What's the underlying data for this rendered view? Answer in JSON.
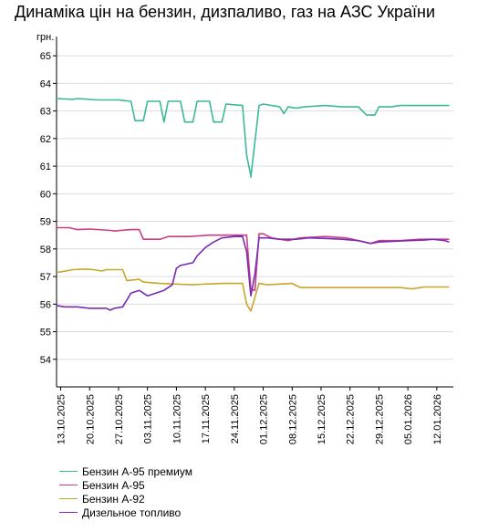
{
  "title": "Динаміка цін на бензин, дизпаливо, газ на АЗС України",
  "chart_data": {
    "type": "line",
    "title": "Динаміка цін на бензин, дизпаливо, газ на АЗС України",
    "ylabel": "грн.",
    "xlabel": "",
    "ylim": [
      53,
      65.5
    ],
    "yticks": [
      54,
      55,
      56,
      57,
      58,
      59,
      60,
      61,
      62,
      63,
      64,
      65
    ],
    "xlim": [
      "2025-10-12",
      "2026-01-16"
    ],
    "xticks": [
      "13.10.2025",
      "20.10.2025",
      "27.10.2025",
      "03.11.2025",
      "10.11.2025",
      "17.11.2025",
      "24.11.2025",
      "01.12.2025",
      "08.12.2025",
      "15.12.2025",
      "22.12.2025",
      "29.12.2025",
      "05.01.2026",
      "12.01.2026"
    ],
    "grid": "horizontal",
    "legend_position": "bottom-left",
    "series": [
      {
        "name": "Бензин А-95 премиум",
        "color": "#3bb89a",
        "points": [
          [
            "2025-10-12",
            63.45
          ],
          [
            "2025-10-16",
            63.42
          ],
          [
            "2025-10-17",
            63.45
          ],
          [
            "2025-10-19",
            63.43
          ],
          [
            "2025-10-22",
            63.4
          ],
          [
            "2025-10-27",
            63.4
          ],
          [
            "2025-10-28",
            63.38
          ],
          [
            "2025-10-30",
            63.35
          ],
          [
            "2025-10-31",
            62.65
          ],
          [
            "2025-11-02",
            62.65
          ],
          [
            "2025-11-03",
            63.35
          ],
          [
            "2025-11-06",
            63.35
          ],
          [
            "2025-11-07",
            62.6
          ],
          [
            "2025-11-08",
            63.35
          ],
          [
            "2025-11-11",
            63.35
          ],
          [
            "2025-11-12",
            62.6
          ],
          [
            "2025-11-14",
            62.6
          ],
          [
            "2025-11-15",
            63.35
          ],
          [
            "2025-11-18",
            63.35
          ],
          [
            "2025-11-19",
            62.6
          ],
          [
            "2025-11-21",
            62.6
          ],
          [
            "2025-11-22",
            63.25
          ],
          [
            "2025-11-26",
            63.2
          ],
          [
            "2025-11-27",
            61.4
          ],
          [
            "2025-11-28",
            60.65
          ],
          [
            "2025-11-28",
            60.6
          ],
          [
            "2025-11-30",
            63.2
          ],
          [
            "2025-12-01",
            63.25
          ],
          [
            "2025-12-05",
            63.15
          ],
          [
            "2025-12-06",
            62.9
          ],
          [
            "2025-12-07",
            63.15
          ],
          [
            "2025-12-09",
            63.1
          ],
          [
            "2025-12-11",
            63.15
          ],
          [
            "2025-12-16",
            63.2
          ],
          [
            "2025-12-20",
            63.15
          ],
          [
            "2025-12-24",
            63.15
          ],
          [
            "2025-12-26",
            62.85
          ],
          [
            "2025-12-28",
            62.85
          ],
          [
            "2025-12-29",
            63.15
          ],
          [
            "2026-01-01",
            63.15
          ],
          [
            "2026-01-03",
            63.2
          ],
          [
            "2026-01-07",
            63.2
          ],
          [
            "2026-01-15",
            63.2
          ]
        ]
      },
      {
        "name": "Бензин А-95",
        "color": "#cc3d86",
        "points": [
          [
            "2025-10-12",
            58.77
          ],
          [
            "2025-10-15",
            58.77
          ],
          [
            "2025-10-17",
            58.7
          ],
          [
            "2025-10-20",
            58.72
          ],
          [
            "2025-10-25",
            58.67
          ],
          [
            "2025-10-26",
            58.65
          ],
          [
            "2025-10-30",
            58.7
          ],
          [
            "2025-11-01",
            58.7
          ],
          [
            "2025-11-02",
            58.35
          ],
          [
            "2025-11-06",
            58.35
          ],
          [
            "2025-11-08",
            58.45
          ],
          [
            "2025-11-13",
            58.45
          ],
          [
            "2025-11-18",
            58.5
          ],
          [
            "2025-11-27",
            58.5
          ],
          [
            "2025-11-28",
            56.55
          ],
          [
            "2025-11-29",
            56.5
          ],
          [
            "2025-11-30",
            58.55
          ],
          [
            "2025-12-01",
            58.55
          ],
          [
            "2025-12-03",
            58.4
          ],
          [
            "2025-12-05",
            58.35
          ],
          [
            "2025-12-07",
            58.3
          ],
          [
            "2025-12-10",
            58.4
          ],
          [
            "2025-12-16",
            58.45
          ],
          [
            "2025-12-21",
            58.4
          ],
          [
            "2025-12-24",
            58.3
          ],
          [
            "2025-12-27",
            58.2
          ],
          [
            "2025-12-29",
            58.3
          ],
          [
            "2026-01-03",
            58.3
          ],
          [
            "2026-01-08",
            58.35
          ],
          [
            "2026-01-15",
            58.35
          ]
        ]
      },
      {
        "name": "Бензин А-92",
        "color": "#c9a52a",
        "points": [
          [
            "2025-10-12",
            57.15
          ],
          [
            "2025-10-13",
            57.17
          ],
          [
            "2025-10-16",
            57.25
          ],
          [
            "2025-10-19",
            57.27
          ],
          [
            "2025-10-21",
            57.25
          ],
          [
            "2025-10-23",
            57.2
          ],
          [
            "2025-10-24",
            57.25
          ],
          [
            "2025-10-28",
            57.25
          ],
          [
            "2025-10-29",
            56.85
          ],
          [
            "2025-11-01",
            56.9
          ],
          [
            "2025-11-02",
            56.8
          ],
          [
            "2025-11-06",
            56.75
          ],
          [
            "2025-11-14",
            56.7
          ],
          [
            "2025-11-16",
            56.72
          ],
          [
            "2025-11-21",
            56.75
          ],
          [
            "2025-11-24",
            56.75
          ],
          [
            "2025-11-26",
            56.75
          ],
          [
            "2025-11-27",
            56.0
          ],
          [
            "2025-11-28",
            55.75
          ],
          [
            "2025-11-30",
            56.75
          ],
          [
            "2025-12-02",
            56.7
          ],
          [
            "2025-12-08",
            56.75
          ],
          [
            "2025-12-10",
            56.6
          ],
          [
            "2025-12-16",
            56.6
          ],
          [
            "2025-12-20",
            56.6
          ],
          [
            "2025-12-24",
            56.6
          ],
          [
            "2026-01-03",
            56.6
          ],
          [
            "2026-01-06",
            56.55
          ],
          [
            "2026-01-09",
            56.62
          ],
          [
            "2026-01-15",
            56.62
          ]
        ]
      },
      {
        "name": "Дизельное топливо",
        "color": "#7b2bb0",
        "points": [
          [
            "2025-10-12",
            55.95
          ],
          [
            "2025-10-14",
            55.9
          ],
          [
            "2025-10-17",
            55.9
          ],
          [
            "2025-10-20",
            55.85
          ],
          [
            "2025-10-24",
            55.85
          ],
          [
            "2025-10-25",
            55.78
          ],
          [
            "2025-10-26",
            55.85
          ],
          [
            "2025-10-28",
            55.9
          ],
          [
            "2025-10-30",
            56.4
          ],
          [
            "2025-11-01",
            56.5
          ],
          [
            "2025-11-03",
            56.3
          ],
          [
            "2025-11-05",
            56.4
          ],
          [
            "2025-11-06",
            56.45
          ],
          [
            "2025-11-07",
            56.5
          ],
          [
            "2025-11-09",
            56.7
          ],
          [
            "2025-11-10",
            57.3
          ],
          [
            "2025-11-11",
            57.4
          ],
          [
            "2025-11-14",
            57.5
          ],
          [
            "2025-11-15",
            57.75
          ],
          [
            "2025-11-17",
            58.05
          ],
          [
            "2025-11-19",
            58.25
          ],
          [
            "2025-11-21",
            58.4
          ],
          [
            "2025-11-24",
            58.45
          ],
          [
            "2025-11-26",
            58.45
          ],
          [
            "2025-11-27",
            57.9
          ],
          [
            "2025-11-28",
            56.3
          ],
          [
            "2025-11-29",
            57.1
          ],
          [
            "2025-11-30",
            58.4
          ],
          [
            "2025-12-02",
            58.4
          ],
          [
            "2025-12-05",
            58.35
          ],
          [
            "2025-12-09",
            58.35
          ],
          [
            "2025-12-12",
            58.4
          ],
          [
            "2025-12-16",
            58.38
          ],
          [
            "2025-12-20",
            58.35
          ],
          [
            "2025-12-24",
            58.3
          ],
          [
            "2025-12-27",
            58.2
          ],
          [
            "2025-12-29",
            58.25
          ],
          [
            "2026-01-05",
            58.3
          ],
          [
            "2026-01-09",
            58.32
          ],
          [
            "2026-01-11",
            58.35
          ],
          [
            "2026-01-14",
            58.3
          ],
          [
            "2026-01-15",
            58.25
          ]
        ]
      }
    ]
  }
}
